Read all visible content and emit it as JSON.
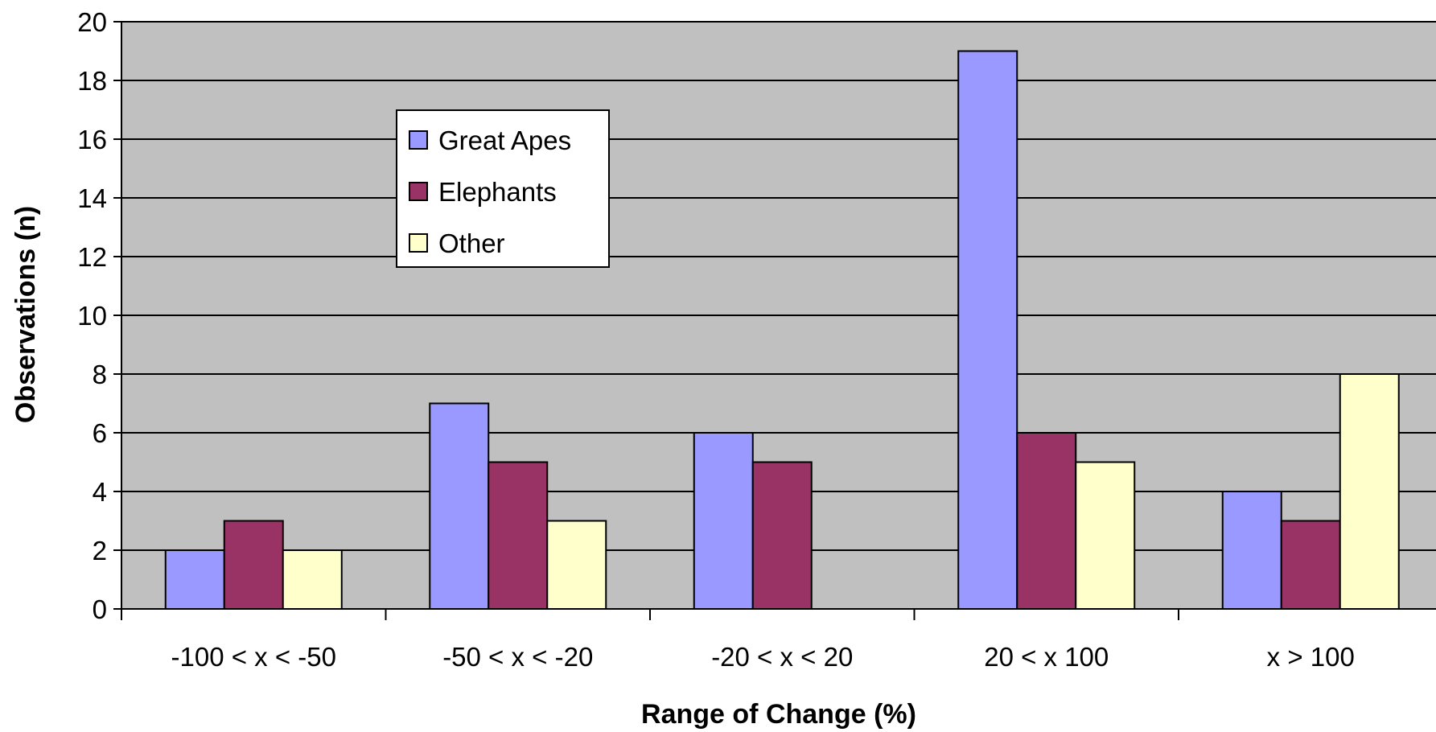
{
  "chart_data": {
    "type": "bar",
    "title": "",
    "xlabel": "Range of Change (%)",
    "ylabel": "Observations (n)",
    "ylim": [
      0,
      20
    ],
    "ytick_step": 2,
    "grid": true,
    "legend_placement": "upper-left inside plot",
    "plot_background": "#C0C0C0",
    "categories": [
      "-100 < x < -50",
      "-50 < x < -20",
      "-20 < x < 20",
      "20 < x 100",
      "x > 100"
    ],
    "series": [
      {
        "name": "Great Apes",
        "color": "#9999FF",
        "values": [
          2,
          7,
          6,
          19,
          4
        ]
      },
      {
        "name": "Elephants",
        "color": "#993366",
        "values": [
          3,
          5,
          5,
          6,
          3
        ]
      },
      {
        "name": "Other",
        "color": "#FFFFCC",
        "values": [
          2,
          3,
          0,
          5,
          8
        ]
      }
    ]
  }
}
